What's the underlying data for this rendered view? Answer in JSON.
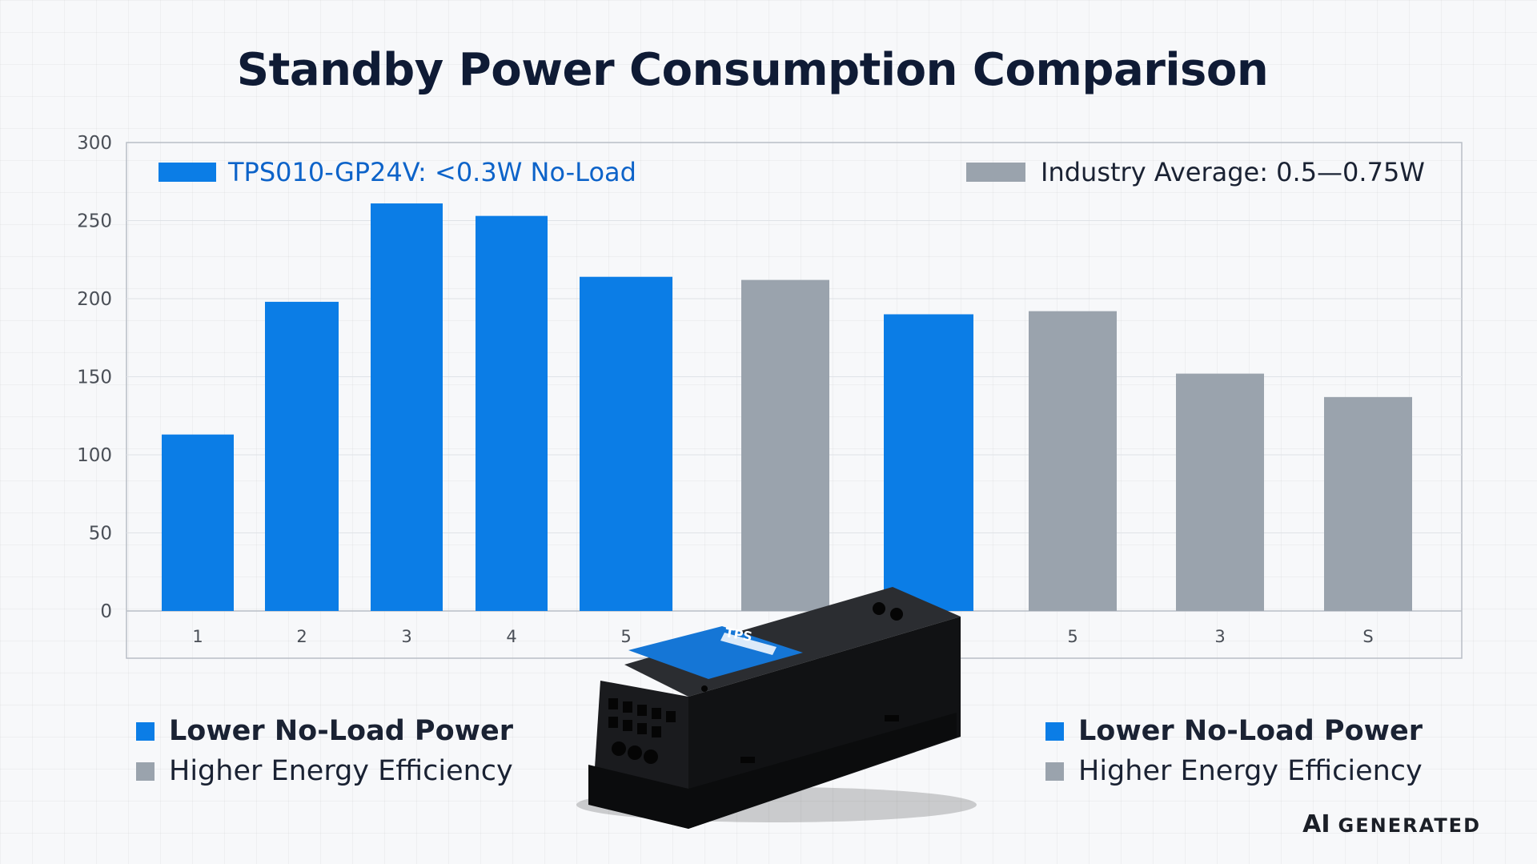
{
  "title": "Standby Power Consumption Comparison",
  "colors": {
    "blue": "#0b7de6",
    "gray": "#9aa3ad",
    "legend_blue_text": "#0d63c9"
  },
  "chart_data": {
    "type": "bar",
    "title": "Standby Power Consumption Comparison",
    "xlabel": "",
    "ylabel": "",
    "ylim": [
      0,
      300
    ],
    "yticks": [
      0,
      50,
      100,
      150,
      200,
      250,
      300
    ],
    "grid": true,
    "legend_position": "top",
    "legend": [
      {
        "label": "TPS010-GP24V: <0.3W No-Load",
        "color": "#0b7de6"
      },
      {
        "label": "Industry Average: 0.5—0.75W",
        "color": "#9aa3ad"
      }
    ],
    "bars": [
      {
        "label": "1",
        "value": 113,
        "series": "blue"
      },
      {
        "label": "2",
        "value": 198,
        "series": "blue"
      },
      {
        "label": "3",
        "value": 261,
        "series": "blue"
      },
      {
        "label": "4",
        "value": 253,
        "series": "blue"
      },
      {
        "label": "5",
        "value": 214,
        "series": "blue"
      },
      {
        "label": "",
        "value": 212,
        "series": "gray"
      },
      {
        "label": "",
        "value": 190,
        "series": "blue"
      },
      {
        "label": "5",
        "value": 192,
        "series": "gray"
      },
      {
        "label": "3",
        "value": 152,
        "series": "gray"
      },
      {
        "label": "S",
        "value": 137,
        "series": "gray"
      }
    ]
  },
  "bottom_legends": {
    "left": [
      "Lower No-Load Power",
      "Higher Energy Efficiency"
    ],
    "right": [
      "Lower No-Load Power",
      "Higher Energy Efficiency"
    ]
  },
  "device_label": "TPS",
  "watermark": {
    "ai": "AI",
    "text": "GENERATED"
  }
}
